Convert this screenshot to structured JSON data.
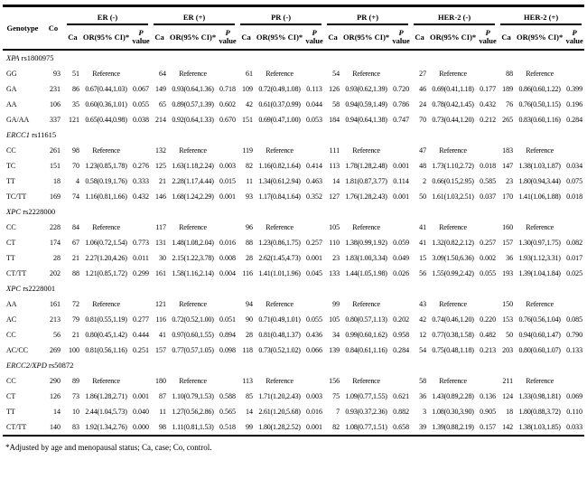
{
  "table": {
    "header": {
      "genotype": "Genotype",
      "co": "Co",
      "groups": [
        "ER (-)",
        "ER (+)",
        "PR (-)",
        "PR (+)",
        "HER-2 (-)",
        "HER-2 (+)"
      ],
      "sub": {
        "ca": "Ca",
        "or": "OR(95% CI)*",
        "p1": "P",
        "p2": "value"
      }
    },
    "sections": [
      {
        "gene": "XPA",
        "snp": "rs1800975",
        "rows": [
          {
            "genotype": "GG",
            "co": "93",
            "cells": [
              {
                "ca": "51",
                "or": "Reference",
                "p": ""
              },
              {
                "ca": "64",
                "or": "Reference",
                "p": ""
              },
              {
                "ca": "61",
                "or": "Reference",
                "p": ""
              },
              {
                "ca": "54",
                "or": "Reference",
                "p": ""
              },
              {
                "ca": "27",
                "or": "Reference",
                "p": ""
              },
              {
                "ca": "88",
                "or": "Reference",
                "p": ""
              }
            ]
          },
          {
            "genotype": "GA",
            "co": "231",
            "cells": [
              {
                "ca": "86",
                "or": "0.67(0.44,1.03)",
                "p": "0.067"
              },
              {
                "ca": "149",
                "or": "0.93(0.64,1.36)",
                "p": "0.718"
              },
              {
                "ca": "109",
                "or": "0.72(0.49,1.08)",
                "p": "0.113"
              },
              {
                "ca": "126",
                "or": "0.93(0.62,1.39)",
                "p": "0.720"
              },
              {
                "ca": "46",
                "or": "0.69(0.41,1.18)",
                "p": "0.177"
              },
              {
                "ca": "189",
                "or": "0.86(0.60,1.22)",
                "p": "0.399"
              }
            ]
          },
          {
            "genotype": "AA",
            "co": "106",
            "cells": [
              {
                "ca": "35",
                "or": "0.60(0.36,1.01)",
                "p": "0.055"
              },
              {
                "ca": "65",
                "or": "0.89(0.57,1.39)",
                "p": "0.602"
              },
              {
                "ca": "42",
                "or": "0.61(0.37,0.99)",
                "p": "0.044"
              },
              {
                "ca": "58",
                "or": "0.94(0.59,1.49)",
                "p": "0.786"
              },
              {
                "ca": "24",
                "or": "0.78(0.42,1.45)",
                "p": "0.432"
              },
              {
                "ca": "76",
                "or": "0.76(0.50,1.15)",
                "p": "0.196"
              }
            ]
          },
          {
            "genotype": "GA/AA",
            "co": "337",
            "cells": [
              {
                "ca": "121",
                "or": "0.65(0.44,0.98)",
                "p": "0.038"
              },
              {
                "ca": "214",
                "or": "0.92(0.64,1.33)",
                "p": "0.670"
              },
              {
                "ca": "151",
                "or": "0.69(0.47,1.00)",
                "p": "0.053"
              },
              {
                "ca": "184",
                "or": "0.94(0.64,1.38)",
                "p": "0.747"
              },
              {
                "ca": "70",
                "or": "0.73(0.44,1.20)",
                "p": "0.212"
              },
              {
                "ca": "265",
                "or": "0.83(0.60,1.16)",
                "p": "0.284"
              }
            ]
          }
        ]
      },
      {
        "gene": "ERCC1",
        "snp": "rs11615",
        "rows": [
          {
            "genotype": "CC",
            "co": "261",
            "cells": [
              {
                "ca": "98",
                "or": "Reference",
                "p": ""
              },
              {
                "ca": "132",
                "or": "Reference",
                "p": ""
              },
              {
                "ca": "119",
                "or": "Reference",
                "p": ""
              },
              {
                "ca": "111",
                "or": "Reference",
                "p": ""
              },
              {
                "ca": "47",
                "or": "Reference",
                "p": ""
              },
              {
                "ca": "183",
                "or": "Reference",
                "p": ""
              }
            ]
          },
          {
            "genotype": "TC",
            "co": "151",
            "cells": [
              {
                "ca": "70",
                "or": "1.23(0.85,1.78)",
                "p": "0.276"
              },
              {
                "ca": "125",
                "or": "1.63(1.18,2.24)",
                "p": "0.003"
              },
              {
                "ca": "82",
                "or": "1.16(0.82,1.64)",
                "p": "0.414"
              },
              {
                "ca": "113",
                "or": "1.78(1.28,2.48)",
                "p": "0.001"
              },
              {
                "ca": "48",
                "or": "1.73(1.10,2.72)",
                "p": "0.018"
              },
              {
                "ca": "147",
                "or": "1.38(1.03,1.87)",
                "p": "0.034"
              }
            ]
          },
          {
            "genotype": "TT",
            "co": "18",
            "cells": [
              {
                "ca": "4",
                "or": "0.58(0.19,1.76)",
                "p": "0.333"
              },
              {
                "ca": "21",
                "or": "2.28(1.17,4.44)",
                "p": "0.015"
              },
              {
                "ca": "11",
                "or": "1.34(0.61,2.94)",
                "p": "0.463"
              },
              {
                "ca": "14",
                "or": "1.81(0.87,3.77)",
                "p": "0.114"
              },
              {
                "ca": "2",
                "or": "0.66(0.15,2.95)",
                "p": "0.585"
              },
              {
                "ca": "23",
                "or": "1.80(0.94,3.44)",
                "p": "0.075"
              }
            ]
          },
          {
            "genotype": "TC/TT",
            "co": "169",
            "cells": [
              {
                "ca": "74",
                "or": "1.16(0.81,1.66)",
                "p": "0.432"
              },
              {
                "ca": "146",
                "or": "1.68(1.24,2.29)",
                "p": "0.001"
              },
              {
                "ca": "93",
                "or": "1.17(0.84,1.64)",
                "p": "0.352"
              },
              {
                "ca": "127",
                "or": "1.76(1.28,2.43)",
                "p": "0.001"
              },
              {
                "ca": "50",
                "or": "1.61(1.03,2.51)",
                "p": "0.037"
              },
              {
                "ca": "170",
                "or": "1.41(1.06,1.88)",
                "p": "0.018"
              }
            ]
          }
        ]
      },
      {
        "gene": "XPC",
        "snp": "rs2228000",
        "rows": [
          {
            "genotype": "CC",
            "co": "228",
            "cells": [
              {
                "ca": "84",
                "or": "Reference",
                "p": ""
              },
              {
                "ca": "117",
                "or": "Reference",
                "p": ""
              },
              {
                "ca": "96",
                "or": "Reference",
                "p": ""
              },
              {
                "ca": "105",
                "or": "Reference",
                "p": ""
              },
              {
                "ca": "41",
                "or": "Reference",
                "p": ""
              },
              {
                "ca": "160",
                "or": "Reference",
                "p": ""
              }
            ]
          },
          {
            "genotype": "CT",
            "co": "174",
            "cells": [
              {
                "ca": "67",
                "or": "1.06(0.72,1.54)",
                "p": "0.773"
              },
              {
                "ca": "131",
                "or": "1.48(1.08,2.04)",
                "p": "0.016"
              },
              {
                "ca": "88",
                "or": "1.23(0.86,1.75)",
                "p": "0.257"
              },
              {
                "ca": "110",
                "or": "1.38(0.99,1.92)",
                "p": "0.059"
              },
              {
                "ca": "41",
                "or": "1.32(0.82,2.12)",
                "p": "0.257"
              },
              {
                "ca": "157",
                "or": "1.30(0.97,1.75)",
                "p": "0.082"
              }
            ]
          },
          {
            "genotype": "TT",
            "co": "28",
            "cells": [
              {
                "ca": "21",
                "or": "2.27(1.20,4.26)",
                "p": "0.011"
              },
              {
                "ca": "30",
                "or": "2.15(1.22,3.78)",
                "p": "0.008"
              },
              {
                "ca": "28",
                "or": "2.62(1.45,4.73)",
                "p": "0.001"
              },
              {
                "ca": "23",
                "or": "1.83(1.00,3.34)",
                "p": "0.049"
              },
              {
                "ca": "15",
                "or": "3.09(1.50,6.36)",
                "p": "0.002"
              },
              {
                "ca": "36",
                "or": "1.93(1.12,3.31)",
                "p": "0.017"
              }
            ]
          },
          {
            "genotype": "CT/TT",
            "co": "202",
            "cells": [
              {
                "ca": "88",
                "or": "1.21(0.85,1.72)",
                "p": "0.299"
              },
              {
                "ca": "161",
                "or": "1.58(1.16,2.14)",
                "p": "0.004"
              },
              {
                "ca": "116",
                "or": "1.41(1.01,1.96)",
                "p": "0.045"
              },
              {
                "ca": "133",
                "or": "1.44(1.05,1.98)",
                "p": "0.026"
              },
              {
                "ca": "56",
                "or": "1.55(0.99,2.42)",
                "p": "0.055"
              },
              {
                "ca": "193",
                "or": "1.39(1.04,1.84)",
                "p": "0.025"
              }
            ]
          }
        ]
      },
      {
        "gene": "XPC",
        "snp": "rs2228001",
        "rows": [
          {
            "genotype": "AA",
            "co": "161",
            "cells": [
              {
                "ca": "72",
                "or": "Reference",
                "p": ""
              },
              {
                "ca": "121",
                "or": "Reference",
                "p": ""
              },
              {
                "ca": "94",
                "or": "Reference",
                "p": ""
              },
              {
                "ca": "99",
                "or": "Reference",
                "p": ""
              },
              {
                "ca": "43",
                "or": "Reference",
                "p": ""
              },
              {
                "ca": "150",
                "or": "Reference",
                "p": ""
              }
            ]
          },
          {
            "genotype": "AC",
            "co": "213",
            "cells": [
              {
                "ca": "79",
                "or": "0.81(0.55,1.19)",
                "p": "0.277"
              },
              {
                "ca": "116",
                "or": "0.72(0.52,1.00)",
                "p": "0.051"
              },
              {
                "ca": "90",
                "or": "0.71(0.49,1.01)",
                "p": "0.055"
              },
              {
                "ca": "105",
                "or": "0.80(0.57,1.13)",
                "p": "0.202"
              },
              {
                "ca": "42",
                "or": "0.74(0.46,1.20)",
                "p": "0.220"
              },
              {
                "ca": "153",
                "or": "0.76(0.56,1.04)",
                "p": "0.085"
              }
            ]
          },
          {
            "genotype": "CC",
            "co": "56",
            "cells": [
              {
                "ca": "21",
                "or": "0.80(0.45,1.42)",
                "p": "0.444"
              },
              {
                "ca": "41",
                "or": "0.97(0.60,1.55)",
                "p": "0.894"
              },
              {
                "ca": "28",
                "or": "0.81(0.48,1.37)",
                "p": "0.436"
              },
              {
                "ca": "34",
                "or": "0.99(0.60,1.62)",
                "p": "0.958"
              },
              {
                "ca": "12",
                "or": "0.77(0.38,1.58)",
                "p": "0.482"
              },
              {
                "ca": "50",
                "or": "0.94(0.60,1.47)",
                "p": "0.790"
              }
            ]
          },
          {
            "genotype": "AC/CC",
            "co": "269",
            "cells": [
              {
                "ca": "100",
                "or": "0.81(0.56,1.16)",
                "p": "0.251"
              },
              {
                "ca": "157",
                "or": "0.77(0.57,1.05)",
                "p": "0.098"
              },
              {
                "ca": "118",
                "or": "0.73(0.52,1.02)",
                "p": "0.066"
              },
              {
                "ca": "139",
                "or": "0.84(0.61,1.16)",
                "p": "0.284"
              },
              {
                "ca": "54",
                "or": "0.75(0.48,1.18)",
                "p": "0.213"
              },
              {
                "ca": "203",
                "or": "0.80(0.60,1.07)",
                "p": "0.133"
              }
            ]
          }
        ]
      },
      {
        "gene": "ERCC2/XPD",
        "snp": "rs50872",
        "rows": [
          {
            "genotype": "CC",
            "co": "290",
            "cells": [
              {
                "ca": "89",
                "or": "Reference",
                "p": ""
              },
              {
                "ca": "180",
                "or": "Reference",
                "p": ""
              },
              {
                "ca": "113",
                "or": "Reference",
                "p": ""
              },
              {
                "ca": "156",
                "or": "Reference",
                "p": ""
              },
              {
                "ca": "58",
                "or": "Reference",
                "p": ""
              },
              {
                "ca": "211",
                "or": "Reference",
                "p": ""
              }
            ]
          },
          {
            "genotype": "CT",
            "co": "126",
            "cells": [
              {
                "ca": "73",
                "or": "1.86(1.28,2.71)",
                "p": "0.001"
              },
              {
                "ca": "87",
                "or": "1.10(0.79,1.53)",
                "p": "0.588"
              },
              {
                "ca": "85",
                "or": "1.71(1.20,2.43)",
                "p": "0.003"
              },
              {
                "ca": "75",
                "or": "1.09(0.77,1.55)",
                "p": "0.621"
              },
              {
                "ca": "36",
                "or": "1.43(0.89,2.28)",
                "p": "0.136"
              },
              {
                "ca": "124",
                "or": "1.33(0.98,1.81)",
                "p": "0.069"
              }
            ]
          },
          {
            "genotype": "TT",
            "co": "14",
            "cells": [
              {
                "ca": "10",
                "or": "2.44(1.04,5.73)",
                "p": "0.040"
              },
              {
                "ca": "11",
                "or": "1.27(0.56,2.86)",
                "p": "0.565"
              },
              {
                "ca": "14",
                "or": "2.61(1.20,5.68)",
                "p": "0.016"
              },
              {
                "ca": "7",
                "or": "0.93(0.37,2.36)",
                "p": "0.882"
              },
              {
                "ca": "3",
                "or": "1.08(0.30,3.90)",
                "p": "0.905"
              },
              {
                "ca": "18",
                "or": "1.80(0.88,3.72)",
                "p": "0.110"
              }
            ]
          },
          {
            "genotype": "CT/TT",
            "co": "140",
            "cells": [
              {
                "ca": "83",
                "or": "1.92(1.34,2.76)",
                "p": "0.000"
              },
              {
                "ca": "98",
                "or": "1.11(0.81,1.53)",
                "p": "0.518"
              },
              {
                "ca": "99",
                "or": "1.80(1.28,2.52)",
                "p": "0.001"
              },
              {
                "ca": "82",
                "or": "1.08(0.77,1.51)",
                "p": "0.658"
              },
              {
                "ca": "39",
                "or": "1.39(0.88,2.19)",
                "p": "0.157"
              },
              {
                "ca": "142",
                "or": "1.38(1.03,1.85)",
                "p": "0.033"
              }
            ]
          }
        ]
      }
    ],
    "footnote": "*Adjusted by age and menopausal status; Ca, case; Co, control."
  }
}
